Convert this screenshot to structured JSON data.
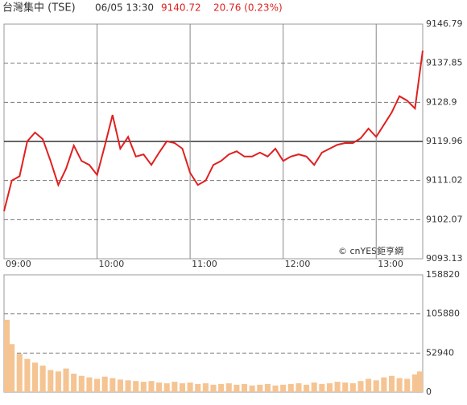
{
  "header": {
    "name": "台灣集中 (TSE)",
    "datetime": "06/05 13:30",
    "price": "9140.72",
    "change": "20.76 (0.23%)"
  },
  "chart_data": [
    {
      "type": "line",
      "annotation": "© cnYES鉅亨網",
      "color": "#e02020",
      "x": [
        "09:00",
        "09:05",
        "09:10",
        "09:15",
        "09:20",
        "09:25",
        "09:30",
        "09:35",
        "09:40",
        "09:45",
        "09:50",
        "09:55",
        "10:00",
        "10:05",
        "10:10",
        "10:15",
        "10:20",
        "10:25",
        "10:30",
        "10:35",
        "10:40",
        "10:45",
        "10:50",
        "10:55",
        "11:00",
        "11:05",
        "11:10",
        "11:15",
        "11:20",
        "11:25",
        "11:30",
        "11:35",
        "11:40",
        "11:45",
        "11:50",
        "11:55",
        "12:00",
        "12:05",
        "12:10",
        "12:15",
        "12:20",
        "12:25",
        "12:30",
        "12:35",
        "12:40",
        "12:45",
        "12:50",
        "12:55",
        "13:00",
        "13:05",
        "13:10",
        "13:15",
        "13:20",
        "13:25",
        "13:30"
      ],
      "values": [
        9104,
        9111,
        9112,
        9120,
        9122,
        9120.5,
        9115.5,
        9110,
        9113.7,
        9119,
        9115.5,
        9114.6,
        9112.3,
        9119,
        9126,
        9118.3,
        9121,
        9116.5,
        9117,
        9114.6,
        9117.4,
        9120,
        9119.6,
        9118.3,
        9112.8,
        9110,
        9111,
        9114.6,
        9115.5,
        9117,
        9117.7,
        9116.5,
        9116.5,
        9117.4,
        9116.5,
        9118.3,
        9115.5,
        9116.5,
        9117,
        9116.5,
        9114.6,
        9117.4,
        9118.3,
        9119.2,
        9119.6,
        9119.6,
        9120.7,
        9122.9,
        9121,
        9123.8,
        9126.6,
        9130.3,
        9129.3,
        9127.5,
        9140.72
      ],
      "xlim": [
        "09:00",
        "13:30"
      ],
      "xticks": [
        "09:00",
        "10:00",
        "11:00",
        "12:00",
        "13:00"
      ],
      "ylim": [
        9093.13,
        9146.79
      ],
      "yticks": [
        9093.13,
        9102.07,
        9111.02,
        9119.96,
        9128.9,
        9137.85,
        9146.79
      ],
      "reference_line": 9119.96,
      "grid": true
    },
    {
      "type": "bar",
      "color": "#f5c493",
      "x": [
        "09:00",
        "09:05",
        "09:10",
        "09:15",
        "09:20",
        "09:25",
        "09:30",
        "09:35",
        "09:40",
        "09:45",
        "09:50",
        "09:55",
        "10:00",
        "10:05",
        "10:10",
        "10:15",
        "10:20",
        "10:25",
        "10:30",
        "10:35",
        "10:40",
        "10:45",
        "10:50",
        "10:55",
        "11:00",
        "11:05",
        "11:10",
        "11:15",
        "11:20",
        "11:25",
        "11:30",
        "11:35",
        "11:40",
        "11:45",
        "11:50",
        "11:55",
        "12:00",
        "12:05",
        "12:10",
        "12:15",
        "12:20",
        "12:25",
        "12:30",
        "12:35",
        "12:40",
        "12:45",
        "12:50",
        "12:55",
        "13:00",
        "13:05",
        "13:10",
        "13:15",
        "13:20",
        "13:25",
        "13:30"
      ],
      "values": [
        98000,
        65000,
        52000,
        45000,
        40000,
        36000,
        30000,
        28000,
        32000,
        25000,
        22000,
        20000,
        18000,
        21000,
        19000,
        17000,
        16000,
        15000,
        14000,
        15000,
        13000,
        12000,
        14000,
        12000,
        13000,
        11000,
        12000,
        10000,
        11000,
        12000,
        10000,
        11000,
        9000,
        10000,
        11000,
        9000,
        10000,
        11000,
        12000,
        10000,
        13000,
        11000,
        12000,
        14000,
        13000,
        12000,
        15000,
        18000,
        16000,
        20000,
        22000,
        19000,
        18000,
        24000,
        28000
      ],
      "ylim": [
        0,
        158820
      ],
      "yticks": [
        0,
        52940,
        105880,
        158820
      ],
      "grid": true
    }
  ]
}
